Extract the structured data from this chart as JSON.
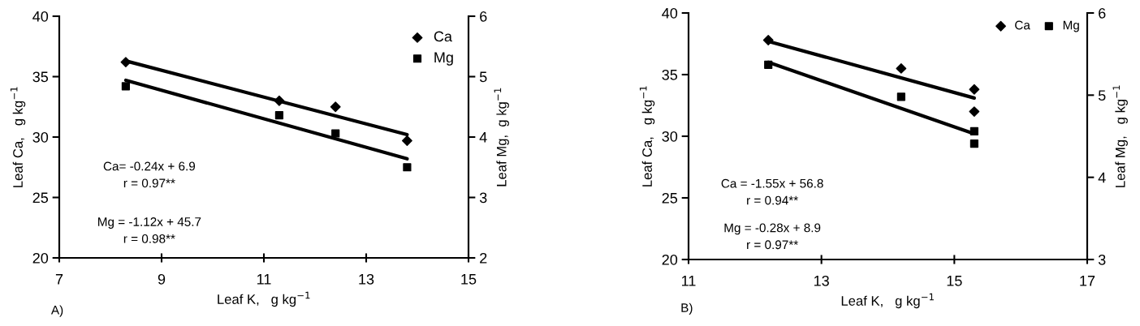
{
  "chart_data": [
    {
      "type": "scatter",
      "xlabel": "Leaf K,   g kg$^{−1}$",
      "ylabel": "Leaf Ca,   g kg$^{−1}$",
      "y2label": "Leaf Mg,  g kg$^{−1}$",
      "xlim": [
        7,
        15
      ],
      "xticks": [
        7,
        9,
        11,
        13,
        15
      ],
      "ylim": [
        20,
        40
      ],
      "yticks": [
        20,
        25,
        30,
        35,
        40
      ],
      "y2lim": [
        2,
        6
      ],
      "y2ticks": [
        2,
        3,
        4,
        5,
        6
      ],
      "legend": "top right",
      "grid": false,
      "annotations": [
        "Ca= -0.24x + 6.9\nr = 0.97**",
        "Mg = -1.12x + 45.7\nr = 0.98**",
        "A)"
      ],
      "series": [
        {
          "name": "Ca",
          "marker": "diamond",
          "color": "#000000",
          "x": [
            8.3,
            11.3,
            12.4,
            13.8
          ],
          "values": [
            36.2,
            33.0,
            32.5,
            29.7
          ]
        },
        {
          "name": "Mg",
          "marker": "square",
          "color": "#000000",
          "axis": "y2",
          "x": [
            8.3,
            11.3,
            12.4,
            13.8
          ],
          "values": [
            4.84,
            4.36,
            4.06,
            3.5
          ]
        },
        {
          "type": "line",
          "color": "#000000",
          "x": [
            8.3,
            13.8
          ],
          "values": [
            36.3,
            30.2
          ]
        },
        {
          "type": "line",
          "color": "#000000",
          "axis": "y2",
          "x": [
            8.3,
            13.8
          ],
          "values": [
            4.94,
            3.64
          ]
        }
      ]
    },
    {
      "type": "scatter",
      "xlabel": "Leaf K,   g kg$^{−1}$",
      "ylabel": "Leaf Ca,   g kg$^{−1}$",
      "y2label": "Leaf Mg,   g kg$^{−1}$",
      "xlim": [
        11,
        17
      ],
      "xticks": [
        11,
        13,
        15,
        17
      ],
      "ylim": [
        20,
        40
      ],
      "yticks": [
        20,
        25,
        30,
        35,
        40
      ],
      "y2lim": [
        3,
        6
      ],
      "y2ticks": [
        3,
        4,
        5,
        6
      ],
      "legend": "top right",
      "grid": false,
      "annotations": [
        "Ca = -1.55x + 56.8\nr = 0.94**",
        "Mg = -0.28x + 8.9\nr = 0.97**",
        "B)"
      ],
      "series": [
        {
          "name": "Ca",
          "marker": "diamond",
          "color": "#000000",
          "x": [
            12.2,
            14.2,
            15.3,
            15.3
          ],
          "values": [
            37.8,
            35.5,
            33.8,
            32.0
          ]
        },
        {
          "name": "Mg",
          "marker": "square",
          "color": "#000000",
          "axis": "y2",
          "x": [
            12.2,
            14.2,
            15.3,
            15.3
          ],
          "values": [
            5.37,
            4.98,
            4.56,
            4.41
          ]
        },
        {
          "type": "line",
          "color": "#000000",
          "x": [
            12.2,
            15.3
          ],
          "values": [
            37.7,
            33.1
          ]
        },
        {
          "type": "line",
          "color": "#000000",
          "axis": "y2",
          "x": [
            12.2,
            15.3
          ],
          "values": [
            5.4,
            4.53
          ]
        }
      ]
    }
  ]
}
